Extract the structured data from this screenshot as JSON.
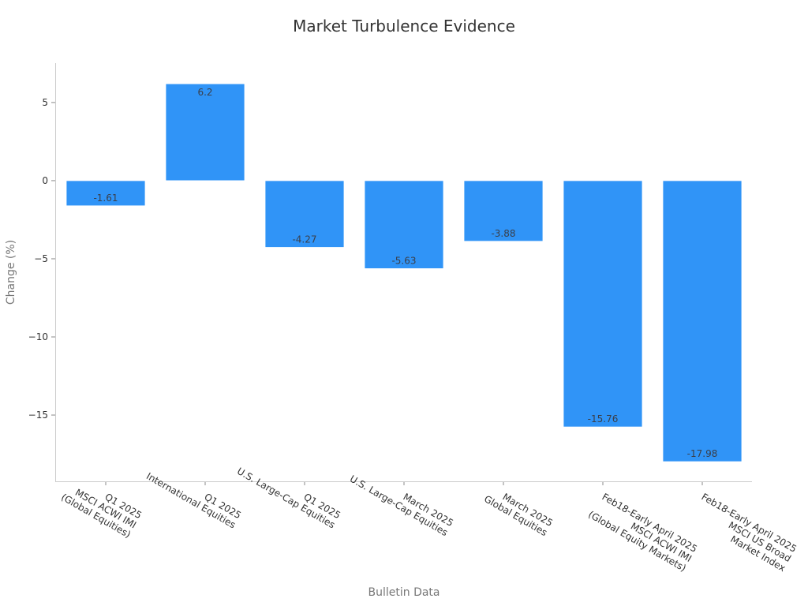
{
  "chart_data": {
    "type": "bar",
    "title": "Market Turbulence Evidence",
    "xlabel": "Bulletin Data",
    "ylabel": "Change (%)",
    "categories": [
      [
        "Q1 2025",
        "MSCI ACWI IMI",
        "(Global Equities)"
      ],
      [
        "Q1 2025",
        "International Equities"
      ],
      [
        "Q1 2025",
        "U.S. Large-Cap Equities"
      ],
      [
        "March 2025",
        "U.S. Large-Cap Equities"
      ],
      [
        "March 2025",
        "Global Equities"
      ],
      [
        "Feb18-Early April 2025",
        "MSCI ACWI IMI",
        "(Global Equity Markets)"
      ],
      [
        "Feb18-Early April 2025",
        "MSCI US Broad",
        "Market Index"
      ]
    ],
    "values": [
      -1.61,
      6.2,
      -4.27,
      -5.63,
      -3.88,
      -15.76,
      -17.98
    ],
    "value_labels": [
      "-1.61",
      "6.2",
      "-4.27",
      "-5.63",
      "-3.88",
      "-15.76",
      "-17.98"
    ],
    "yticks": [
      5,
      0,
      -5,
      -10,
      -15
    ],
    "ytick_labels": [
      "5",
      "0",
      "−5",
      "−10",
      "−15"
    ],
    "ylim": [
      -19.24,
      7.52
    ],
    "grid": false,
    "legend": null,
    "bar_color": "#3094f7"
  }
}
